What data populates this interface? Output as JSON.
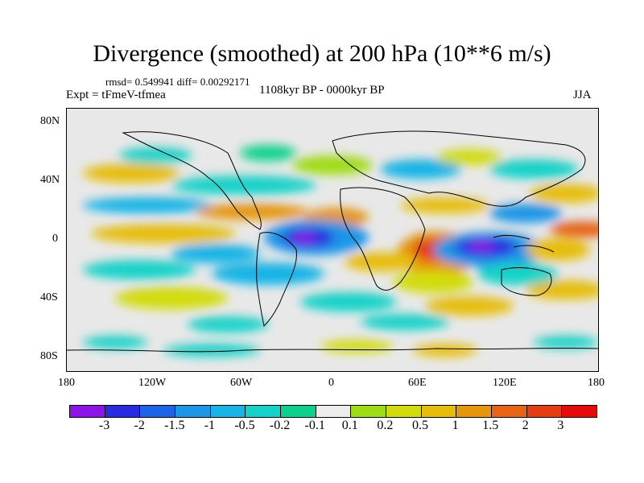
{
  "title": "Divergence (smoothed) at 200 hPa (10**6 m/s)",
  "stats": "rmsd= 0.549941 diff= 0.00292171",
  "expt": "Expt = tFmeV-tfmea",
  "period": "1108kyr BP - 0000kyr BP",
  "season": "JJA",
  "y_axis_labels": [
    "80N",
    "40N",
    "0",
    "40S",
    "80S"
  ],
  "x_axis_labels": [
    "180",
    "120W",
    "60W",
    "0",
    "60E",
    "120E",
    "180"
  ],
  "colorbar": {
    "colors": [
      "#8c14e8",
      "#2a2ae0",
      "#1e64e6",
      "#1e96e6",
      "#19b4e6",
      "#14d2c8",
      "#0ad28c",
      "#ececec",
      "#a0dc14",
      "#d2dc0a",
      "#e6be0a",
      "#e6960a",
      "#e66414",
      "#e63c14",
      "#e60a0a"
    ],
    "labels": [
      "-3",
      "-2",
      "-1.5",
      "-1",
      "-0.5",
      "-0.2",
      "-0.1",
      "0.1",
      "0.2",
      "0.5",
      "1",
      "1.5",
      "2",
      "3"
    ]
  },
  "colors": {
    "background": "#ffffff",
    "map_neutral": "#e8e8e8",
    "coastline": "#000000"
  }
}
